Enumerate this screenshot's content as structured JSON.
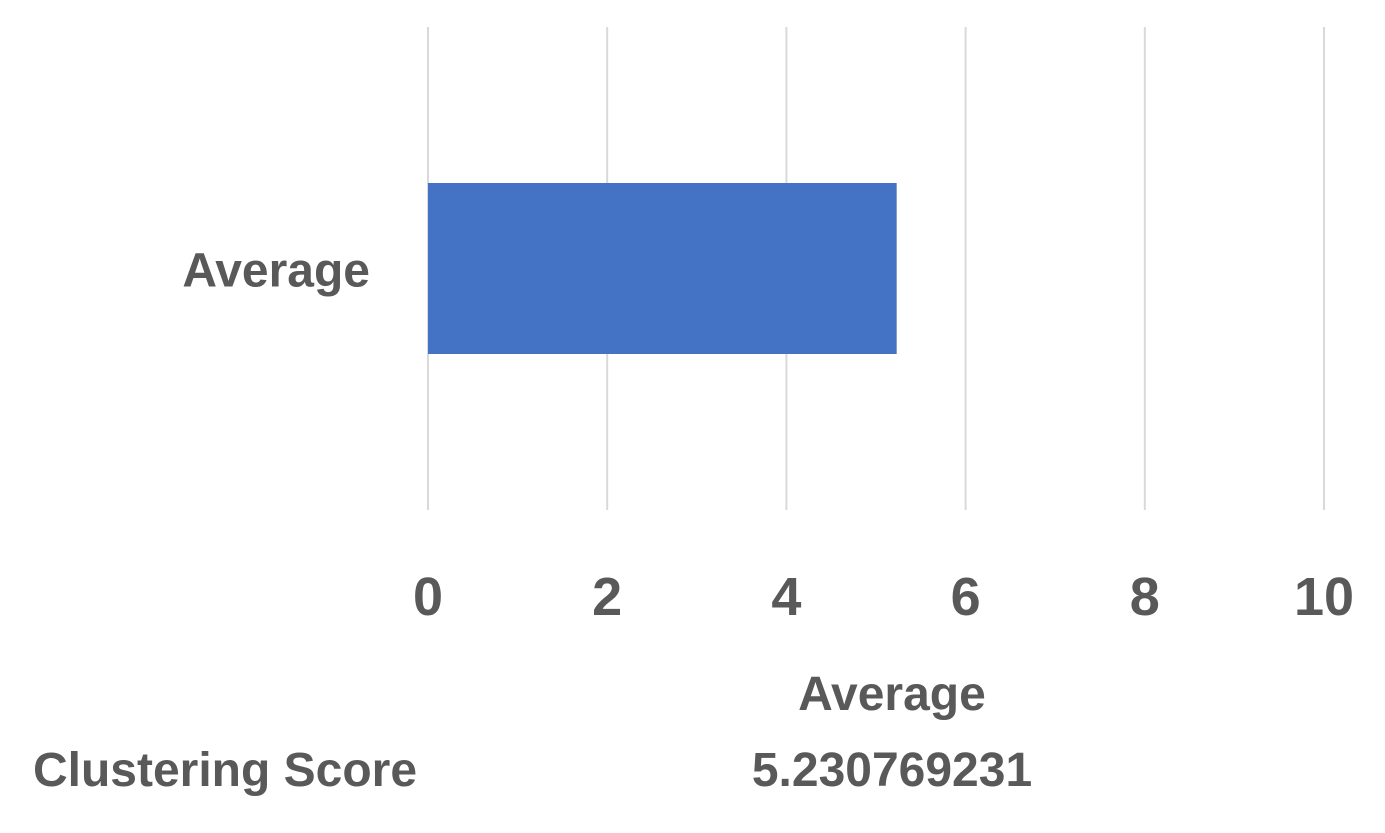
{
  "chart_data": {
    "type": "bar",
    "orientation": "horizontal",
    "categories": [
      "Average"
    ],
    "values": [
      5.230769231
    ],
    "xlim": [
      0,
      10
    ],
    "x_ticks": [
      "0",
      "2",
      "4",
      "6",
      "8",
      "10"
    ],
    "grid": "vertical",
    "bar_color": "#4472C4",
    "gridline_color": "#d9d9d9",
    "text_color": "#595959",
    "data_table": {
      "column_header": "Average",
      "row_label": "Clustering Score",
      "value": "5.230769231"
    }
  }
}
